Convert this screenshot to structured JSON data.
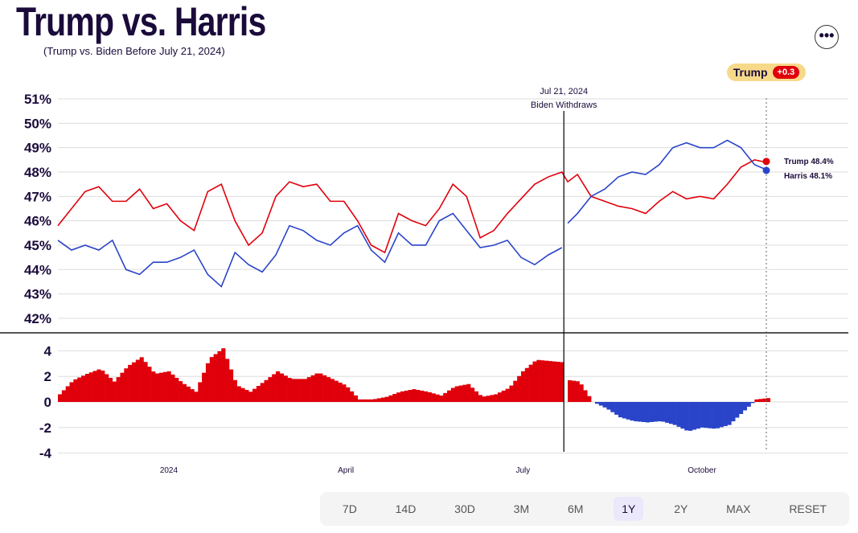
{
  "header": {
    "title": "Trump vs. Harris",
    "subtitle": "(Trump vs. Biden Before July 21, 2024)",
    "menu_icon": "more-icon"
  },
  "leader": {
    "name": "Trump",
    "margin": "+0.3"
  },
  "colors": {
    "trump": "#e0000b",
    "dem": "#2a44c9"
  },
  "range_buttons": [
    "7D",
    "14D",
    "30D",
    "3M",
    "6M",
    "1Y",
    "2Y",
    "MAX",
    "RESET"
  ],
  "selected_range": "1Y",
  "chart_data": {
    "type": "line",
    "x_unit": "days since 2023-11-05",
    "xlim": [
      0,
      406
    ],
    "x_ticks": [
      {
        "day": 57,
        "label": "2024"
      },
      {
        "day": 148,
        "label": "April"
      },
      {
        "day": 239,
        "label": "July"
      },
      {
        "day": 331,
        "label": "October"
      }
    ],
    "ylim": [
      41.5,
      51
    ],
    "y_ticks": [
      "51%",
      "50%",
      "49%",
      "48%",
      "47%",
      "46%",
      "45%",
      "44%",
      "43%",
      "42%"
    ],
    "spread_ylim": [
      -4,
      4
    ],
    "spread_ticks": [
      "4",
      "2",
      "0",
      "-2",
      "-4"
    ],
    "annotation": {
      "day": 260,
      "date": "Jul 21, 2024",
      "text": "Biden Withdraws"
    },
    "series": [
      {
        "name": "Trump",
        "points": [
          [
            0,
            45.8
          ],
          [
            7,
            46.5
          ],
          [
            14,
            47.2
          ],
          [
            21,
            47.4
          ],
          [
            28,
            46.8
          ],
          [
            35,
            46.8
          ],
          [
            42,
            47.3
          ],
          [
            49,
            46.5
          ],
          [
            56,
            46.7
          ],
          [
            63,
            46.0
          ],
          [
            70,
            45.6
          ],
          [
            77,
            47.2
          ],
          [
            84,
            47.5
          ],
          [
            91,
            46.0
          ],
          [
            98,
            45.0
          ],
          [
            105,
            45.5
          ],
          [
            112,
            47.0
          ],
          [
            119,
            47.6
          ],
          [
            126,
            47.4
          ],
          [
            133,
            47.5
          ],
          [
            140,
            46.8
          ],
          [
            147,
            46.8
          ],
          [
            154,
            46.0
          ],
          [
            161,
            45.0
          ],
          [
            168,
            44.7
          ],
          [
            175,
            46.3
          ],
          [
            182,
            46.0
          ],
          [
            189,
            45.8
          ],
          [
            196,
            46.5
          ],
          [
            203,
            47.5
          ],
          [
            210,
            47.0
          ],
          [
            217,
            45.3
          ],
          [
            224,
            45.6
          ],
          [
            231,
            46.3
          ],
          [
            238,
            46.9
          ],
          [
            245,
            47.5
          ],
          [
            252,
            47.8
          ],
          [
            259,
            48.0
          ],
          [
            262,
            47.6
          ],
          [
            267,
            47.9
          ],
          [
            274,
            47.0
          ],
          [
            281,
            46.8
          ],
          [
            288,
            46.6
          ],
          [
            295,
            46.5
          ],
          [
            302,
            46.3
          ],
          [
            309,
            46.8
          ],
          [
            316,
            47.2
          ],
          [
            323,
            46.9
          ],
          [
            330,
            47.0
          ],
          [
            337,
            46.9
          ],
          [
            344,
            47.5
          ],
          [
            351,
            48.2
          ],
          [
            358,
            48.5
          ],
          [
            364,
            48.4
          ]
        ]
      },
      {
        "name": "Biden",
        "points": [
          [
            0,
            45.2
          ],
          [
            7,
            44.8
          ],
          [
            14,
            45.0
          ],
          [
            21,
            44.8
          ],
          [
            28,
            45.2
          ],
          [
            35,
            44.0
          ],
          [
            42,
            43.8
          ],
          [
            49,
            44.3
          ],
          [
            56,
            44.3
          ],
          [
            63,
            44.5
          ],
          [
            70,
            44.8
          ],
          [
            77,
            43.8
          ],
          [
            84,
            43.3
          ],
          [
            91,
            44.7
          ],
          [
            98,
            44.2
          ],
          [
            105,
            43.9
          ],
          [
            112,
            44.6
          ],
          [
            119,
            45.8
          ],
          [
            126,
            45.6
          ],
          [
            133,
            45.2
          ],
          [
            140,
            45.0
          ],
          [
            147,
            45.5
          ],
          [
            154,
            45.8
          ],
          [
            161,
            44.8
          ],
          [
            168,
            44.3
          ],
          [
            175,
            45.5
          ],
          [
            182,
            45.0
          ],
          [
            189,
            45.0
          ],
          [
            196,
            46.0
          ],
          [
            203,
            46.3
          ],
          [
            210,
            45.6
          ],
          [
            217,
            44.9
          ],
          [
            224,
            45.0
          ],
          [
            231,
            45.2
          ],
          [
            238,
            44.5
          ],
          [
            245,
            44.2
          ],
          [
            252,
            44.6
          ],
          [
            259,
            44.9
          ]
        ]
      },
      {
        "name": "Harris",
        "points": [
          [
            262,
            45.9
          ],
          [
            267,
            46.3
          ],
          [
            274,
            47.0
          ],
          [
            281,
            47.3
          ],
          [
            288,
            47.8
          ],
          [
            295,
            48.0
          ],
          [
            302,
            47.9
          ],
          [
            309,
            48.3
          ],
          [
            316,
            49.0
          ],
          [
            323,
            49.2
          ],
          [
            330,
            49.0
          ],
          [
            337,
            49.0
          ],
          [
            344,
            49.3
          ],
          [
            351,
            49.0
          ],
          [
            358,
            48.3
          ],
          [
            364,
            48.1
          ]
        ]
      }
    ],
    "end_labels": [
      {
        "name": "Trump",
        "value": "Trump 48.4%"
      },
      {
        "name": "Harris",
        "value": "Harris 48.1%"
      }
    ]
  }
}
